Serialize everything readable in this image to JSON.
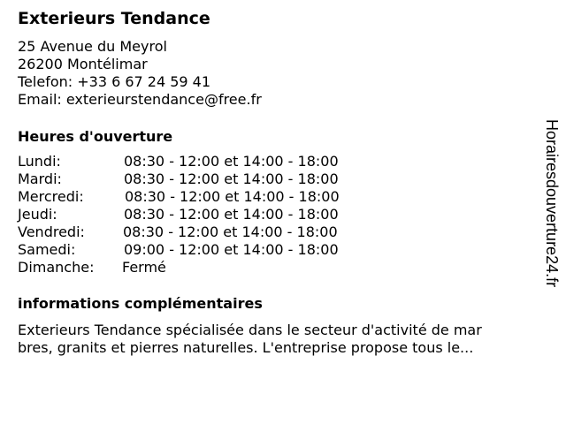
{
  "business": {
    "name": "Exterieurs Tendance",
    "address_line1": "25 Avenue du Meyrol",
    "address_line2": "26200 Montélimar",
    "phone": "Telefon: +33 6 67 24 59 41",
    "email": "Email: exterieurstendance@free.fr"
  },
  "hours": {
    "title": "Heures d'ouverture",
    "rows": [
      {
        "day": "Lundi:",
        "time": "08:30 - 12:00 et 14:00 - 18:00"
      },
      {
        "day": "Mardi:",
        "time": "08:30 - 12:00 et 14:00 - 18:00"
      },
      {
        "day": "Mercredi:",
        "time": "08:30 - 12:00 et 14:00 - 18:00"
      },
      {
        "day": "Jeudi:",
        "time": "08:30 - 12:00 et 14:00 - 18:00"
      },
      {
        "day": "Vendredi:",
        "time": "08:30 - 12:00 et 14:00 - 18:00"
      },
      {
        "day": "Samedi:",
        "time": "09:00 - 12:00 et 14:00 - 18:00"
      },
      {
        "day": "Dimanche:",
        "time": "Fermé"
      }
    ]
  },
  "info": {
    "title": "informations complémentaires",
    "line1": "Exterieurs Tendance spécialisée dans le secteur d'activité de mar",
    "line2": "bres, granits et pierres naturelles. L'entreprise propose tous le..."
  },
  "watermark": "Horairesdouverture24.fr"
}
